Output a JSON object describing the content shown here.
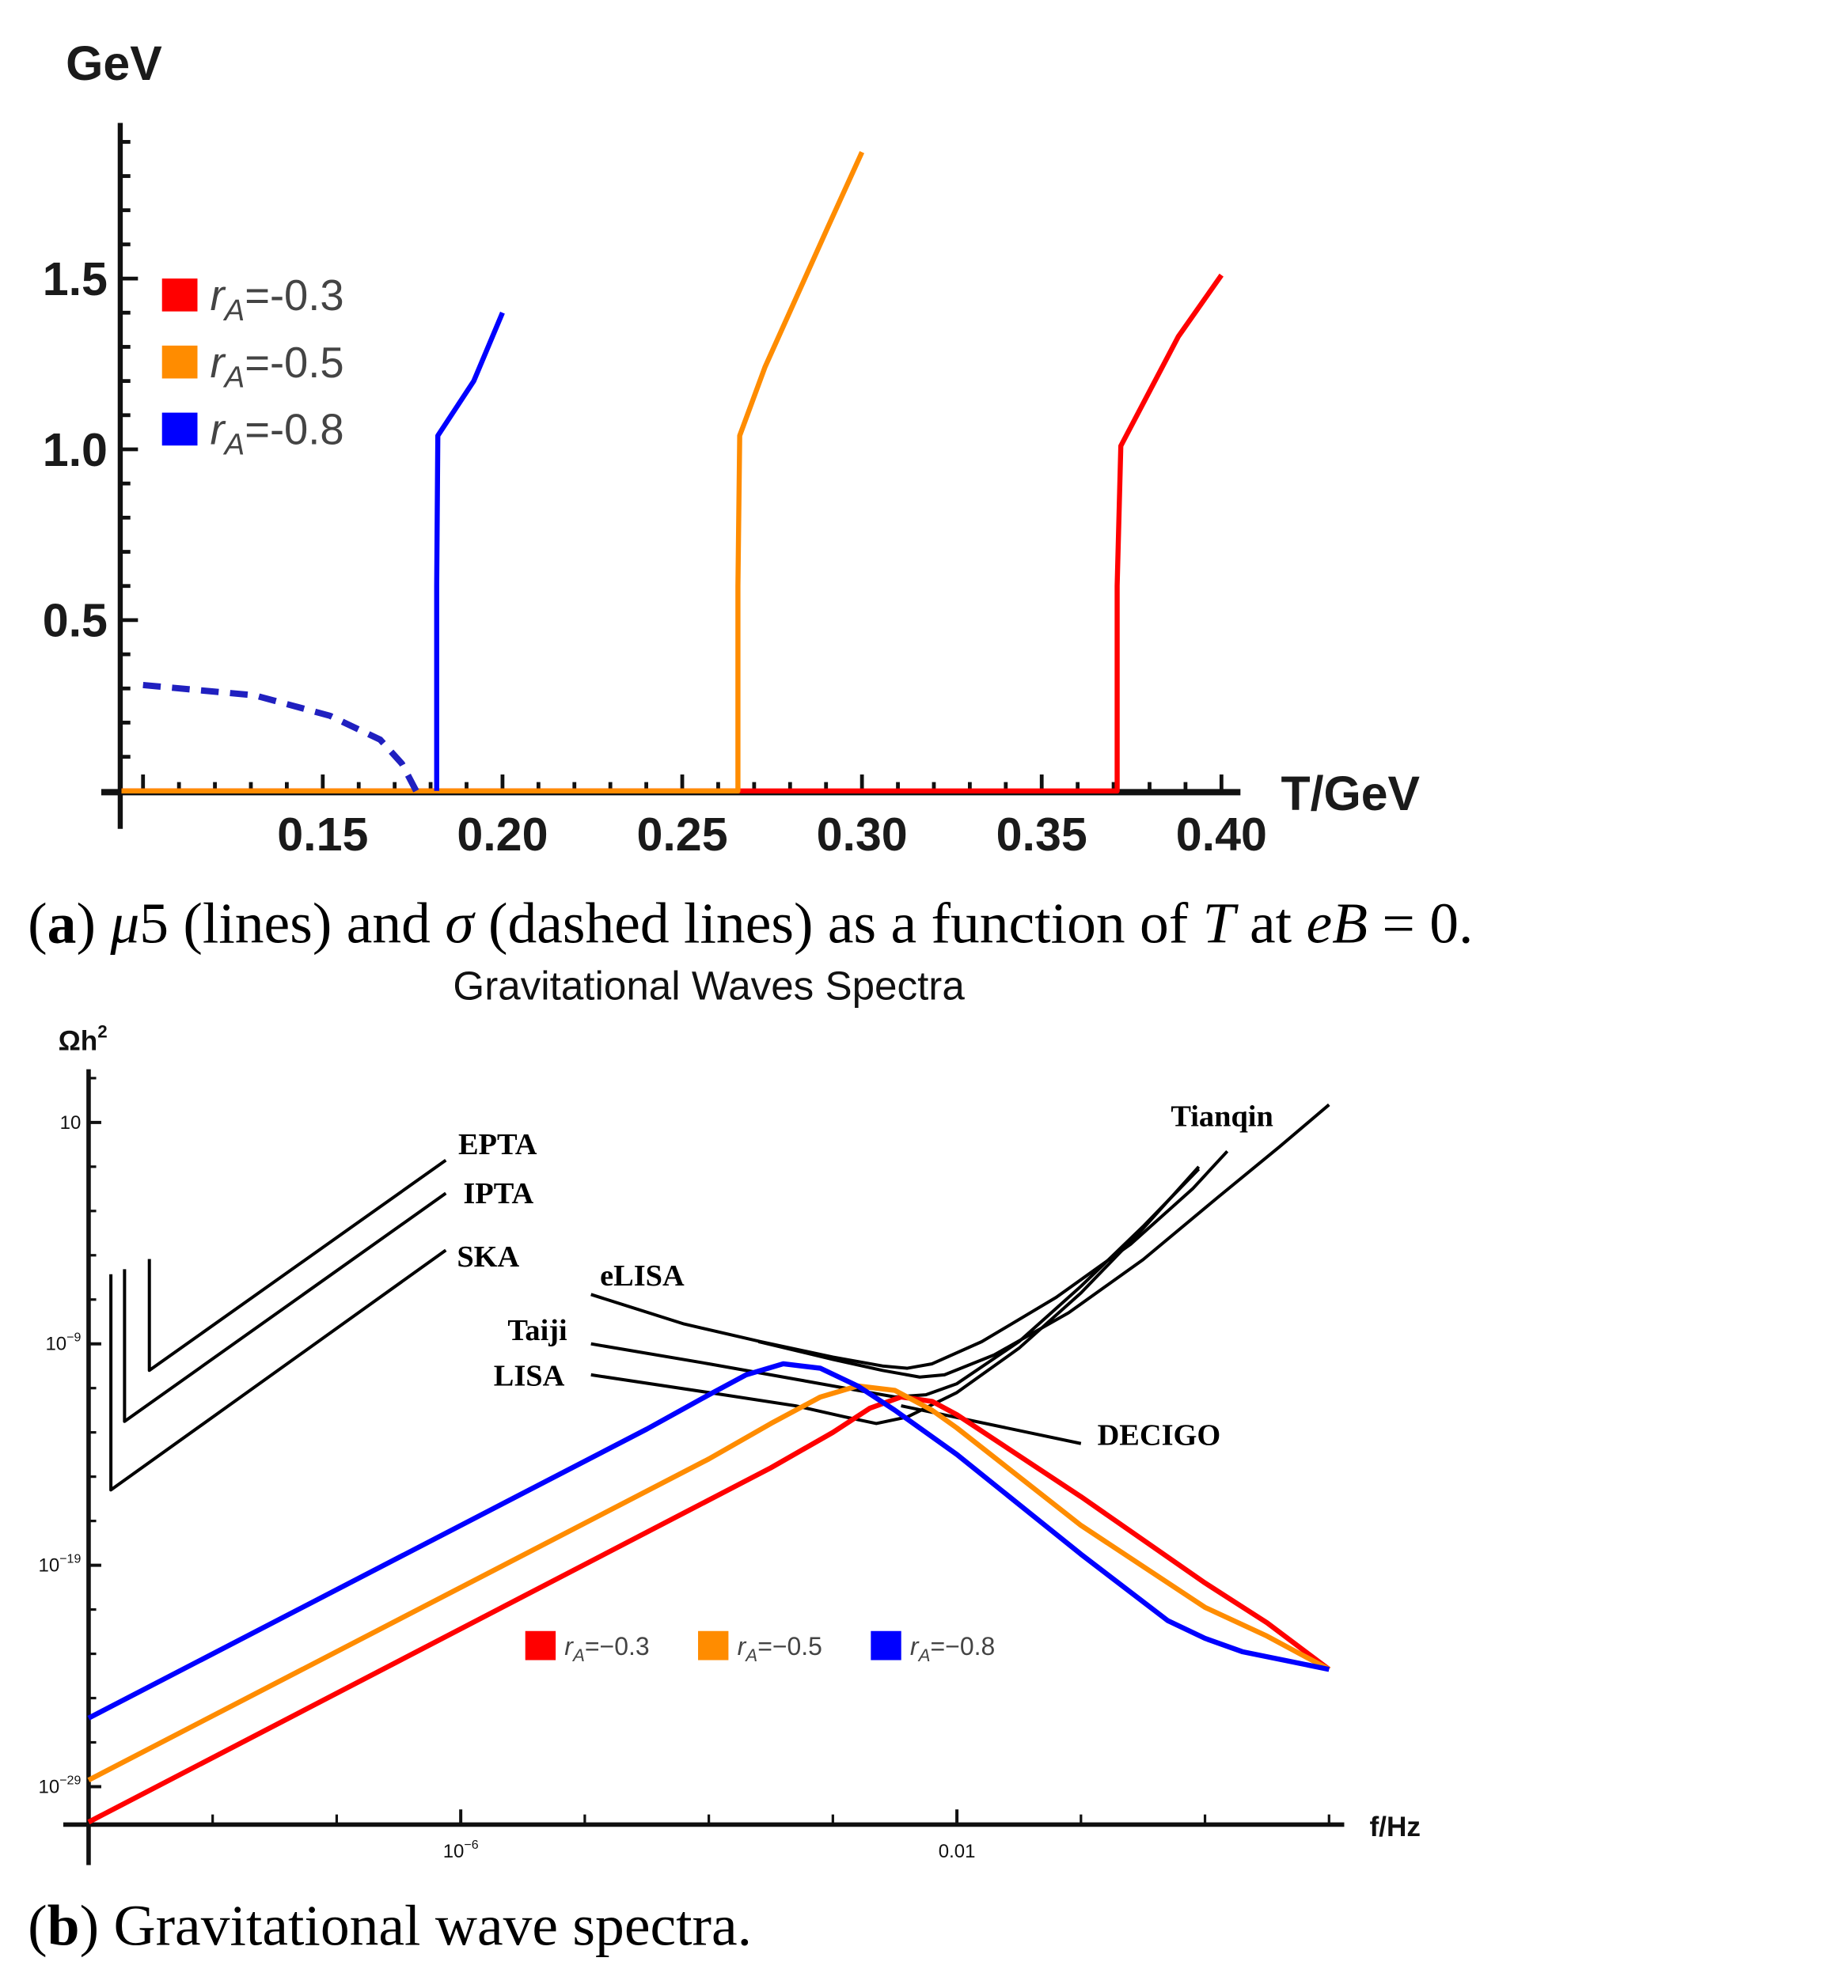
{
  "chart_data": [
    {
      "type": "line",
      "ylabel": "GeV",
      "xlabel": "T/GeV",
      "xlim": [
        0.094,
        0.41
      ],
      "ylim": [
        0,
        1.95
      ],
      "xticks": [
        0.15,
        0.2,
        0.25,
        0.3,
        0.35,
        0.4
      ],
      "xtick_labels": [
        "0.15",
        "0.20",
        "0.25",
        "0.30",
        "0.35",
        "0.40"
      ],
      "yticks": [
        0.5,
        1.0,
        1.5
      ],
      "ytick_labels": [
        "0.5",
        "1.0",
        "1.5"
      ],
      "grid": false,
      "legend_placement": "top-left",
      "legend": [
        {
          "r": "r",
          "sub": "A",
          "value": "=-0.3",
          "color": "#ff0000"
        },
        {
          "r": "r",
          "sub": "A",
          "value": "=-0.5",
          "color": "#ff8c00"
        },
        {
          "r": "r",
          "sub": "A",
          "value": "=-0.8",
          "color": "#0000ff"
        }
      ],
      "series": [
        {
          "name": "rA=-0.3",
          "color": "#ff0000",
          "style": "solid",
          "x": [
            0.094,
            0.371,
            0.371,
            0.372,
            0.388,
            0.4
          ],
          "y": [
            0,
            0,
            0.6,
            1.01,
            1.33,
            1.51
          ]
        },
        {
          "name": "rA=-0.5",
          "color": "#ff8c00",
          "style": "solid",
          "x": [
            0.094,
            0.2655,
            0.2655,
            0.266,
            0.273,
            0.2905,
            0.3
          ],
          "y": [
            0,
            0,
            0.6,
            1.04,
            1.24,
            1.65,
            1.87
          ]
        },
        {
          "name": "rA=-0.8",
          "color": "#0000ff",
          "style": "solid",
          "x": [
            0.1817,
            0.1817,
            0.182,
            0.192,
            0.2
          ],
          "y": [
            0,
            0.6,
            1.04,
            1.2,
            1.4
          ]
        },
        {
          "name": "sigma rA=-0.8",
          "color": "#2020c0",
          "style": "dashed",
          "x": [
            0.1,
            0.131,
            0.152,
            0.166,
            0.172,
            0.176
          ],
          "y": [
            0.31,
            0.28,
            0.22,
            0.15,
            0.08,
            0.0
          ]
        }
      ]
    },
    {
      "type": "line",
      "title": "Gravitational Waves Spectra",
      "ylabel": "Ωh",
      "ylabel_sup": "2",
      "xlabel": "f/Hz",
      "xscale": "log",
      "yscale": "log",
      "xlim_log10": [
        -9,
        1
      ],
      "ylim_log10": [
        -30.7,
        3.4
      ],
      "xticks_log10": [
        -6,
        -2
      ],
      "xtick_labels": [
        {
          "base": "10",
          "sup": "−6"
        },
        {
          "base": "0.01",
          "sup": ""
        }
      ],
      "yticks_log10": [
        1,
        -9,
        -19,
        -29
      ],
      "ytick_labels": [
        {
          "base": "10",
          "sup": ""
        },
        {
          "base": "10",
          "sup": "−9"
        },
        {
          "base": "10",
          "sup": "−19"
        },
        {
          "base": "10",
          "sup": "−29"
        }
      ],
      "grid": false,
      "legend_placement": "bottom-center",
      "legend": [
        {
          "r": "r",
          "sub": "A",
          "value": "=−0.3",
          "color": "#ff0000"
        },
        {
          "r": "r",
          "sub": "A",
          "value": "=−0.5",
          "color": "#ff8c00"
        },
        {
          "r": "r",
          "sub": "A",
          "value": "=−0.8",
          "color": "#0000ff"
        }
      ],
      "series": [
        {
          "name": "rA=-0.3",
          "color": "#ff0000",
          "x": [
            -9,
            -3.5,
            -3.0,
            -2.7,
            -2.45,
            -2.2,
            -2.0,
            -1.0,
            0,
            0.5,
            1
          ],
          "y": [
            -30.6,
            -14.6,
            -13.0,
            -11.9,
            -11.4,
            -11.6,
            -12.2,
            -15.9,
            -19.8,
            -21.6,
            -23.7
          ]
        },
        {
          "name": "rA=-0.5",
          "color": "#ff8c00",
          "x": [
            -9,
            -4.0,
            -3.5,
            -3.1,
            -2.8,
            -2.5,
            -2.2,
            -2.0,
            -1.0,
            0,
            0.5,
            1
          ],
          "y": [
            -28.7,
            -14.2,
            -12.6,
            -11.4,
            -10.9,
            -11.1,
            -12.0,
            -12.8,
            -17.2,
            -20.9,
            -22.2,
            -23.7
          ]
        },
        {
          "name": "rA=-0.8",
          "color": "#0000ff",
          "x": [
            -9,
            -4.5,
            -4.0,
            -3.7,
            -3.4,
            -3.1,
            -2.8,
            -2.5,
            -2.0,
            -1.0,
            -0.3,
            0.0,
            0.3,
            1
          ],
          "y": [
            -25.9,
            -12.85,
            -11.3,
            -10.4,
            -9.9,
            -10.1,
            -10.9,
            -12.0,
            -14.0,
            -18.5,
            -21.5,
            -22.3,
            -22.9,
            -23.7
          ]
        }
      ],
      "sensitivity_curves": [
        {
          "label": "EPTA",
          "x": [
            -8.51,
            -8.51,
            -6.12
          ],
          "y": [
            -5.17,
            -10.2,
            -0.71
          ]
        },
        {
          "label": "IPTA",
          "x": [
            -8.71,
            -8.71,
            -6.12
          ],
          "y": [
            -5.63,
            -12.5,
            -2.2
          ]
        },
        {
          "label": "SKA",
          "x": [
            -8.82,
            -8.82,
            -6.12
          ],
          "y": [
            -5.86,
            -15.6,
            -4.77
          ]
        },
        {
          "label": "eLISA",
          "x": [
            -4.95,
            -4.2,
            -3.59,
            -3.0,
            -2.6,
            -2.4,
            -2.2,
            -1.8,
            -1.2,
            -0.6,
            -0.1,
            0.18
          ],
          "y": [
            -6.77,
            -8.1,
            -8.89,
            -9.6,
            -10.0,
            -10.1,
            -9.9,
            -8.9,
            -6.9,
            -4.5,
            -2.0,
            -0.3
          ]
        },
        {
          "label": "Tianqin",
          "x": [
            -3.6,
            -3.0,
            -2.6,
            -2.3,
            -2.1,
            -1.7,
            -1.1,
            -0.5,
            0.1,
            0.6,
            1.0
          ],
          "y": [
            -8.9,
            -9.7,
            -10.2,
            -10.5,
            -10.4,
            -9.5,
            -7.6,
            -5.2,
            -2.4,
            -0.1,
            1.8
          ]
        },
        {
          "label": "Taiji",
          "x": [
            -4.95,
            -4.0,
            -3.3,
            -2.8,
            -2.5,
            -2.25,
            -2.0,
            -1.5,
            -1.0,
            -0.5,
            -0.05
          ],
          "y": [
            -9.0,
            -9.9,
            -10.6,
            -11.1,
            -11.4,
            -11.3,
            -10.8,
            -8.9,
            -6.4,
            -3.7,
            -1.1
          ]
        },
        {
          "label": "LISA",
          "x": [
            -4.95,
            -4.0,
            -3.3,
            -2.9,
            -2.65,
            -2.4,
            -2.0,
            -1.5,
            -1.0,
            -0.5,
            -0.05
          ],
          "y": [
            -10.4,
            -11.2,
            -11.8,
            -12.3,
            -12.6,
            -12.3,
            -11.2,
            -9.2,
            -6.7,
            -3.8,
            -1.0
          ]
        },
        {
          "label": "DECIGO",
          "x": [
            -2.45,
            -1.0
          ],
          "y": [
            -11.8,
            -13.5
          ]
        }
      ]
    }
  ],
  "captions": {
    "a": [
      {
        "text": "(",
        "style": "normal"
      },
      {
        "text": "a",
        "style": "bold"
      },
      {
        "text": ") ",
        "style": "normal"
      },
      {
        "text": "μ",
        "style": "italic"
      },
      {
        "text": "5 (lines) and ",
        "style": "normal"
      },
      {
        "text": "σ",
        "style": "italic"
      },
      {
        "text": " (dashed lines) as a function of ",
        "style": "normal"
      },
      {
        "text": "T",
        "style": "italic"
      },
      {
        "text": " at ",
        "style": "normal"
      },
      {
        "text": "eB",
        "style": "italic"
      },
      {
        "text": " = 0.",
        "style": "normal"
      }
    ],
    "b": [
      {
        "text": "(",
        "style": "normal"
      },
      {
        "text": "b",
        "style": "bold"
      },
      {
        "text": ") Gravitational wave spectra.",
        "style": "normal"
      }
    ]
  }
}
